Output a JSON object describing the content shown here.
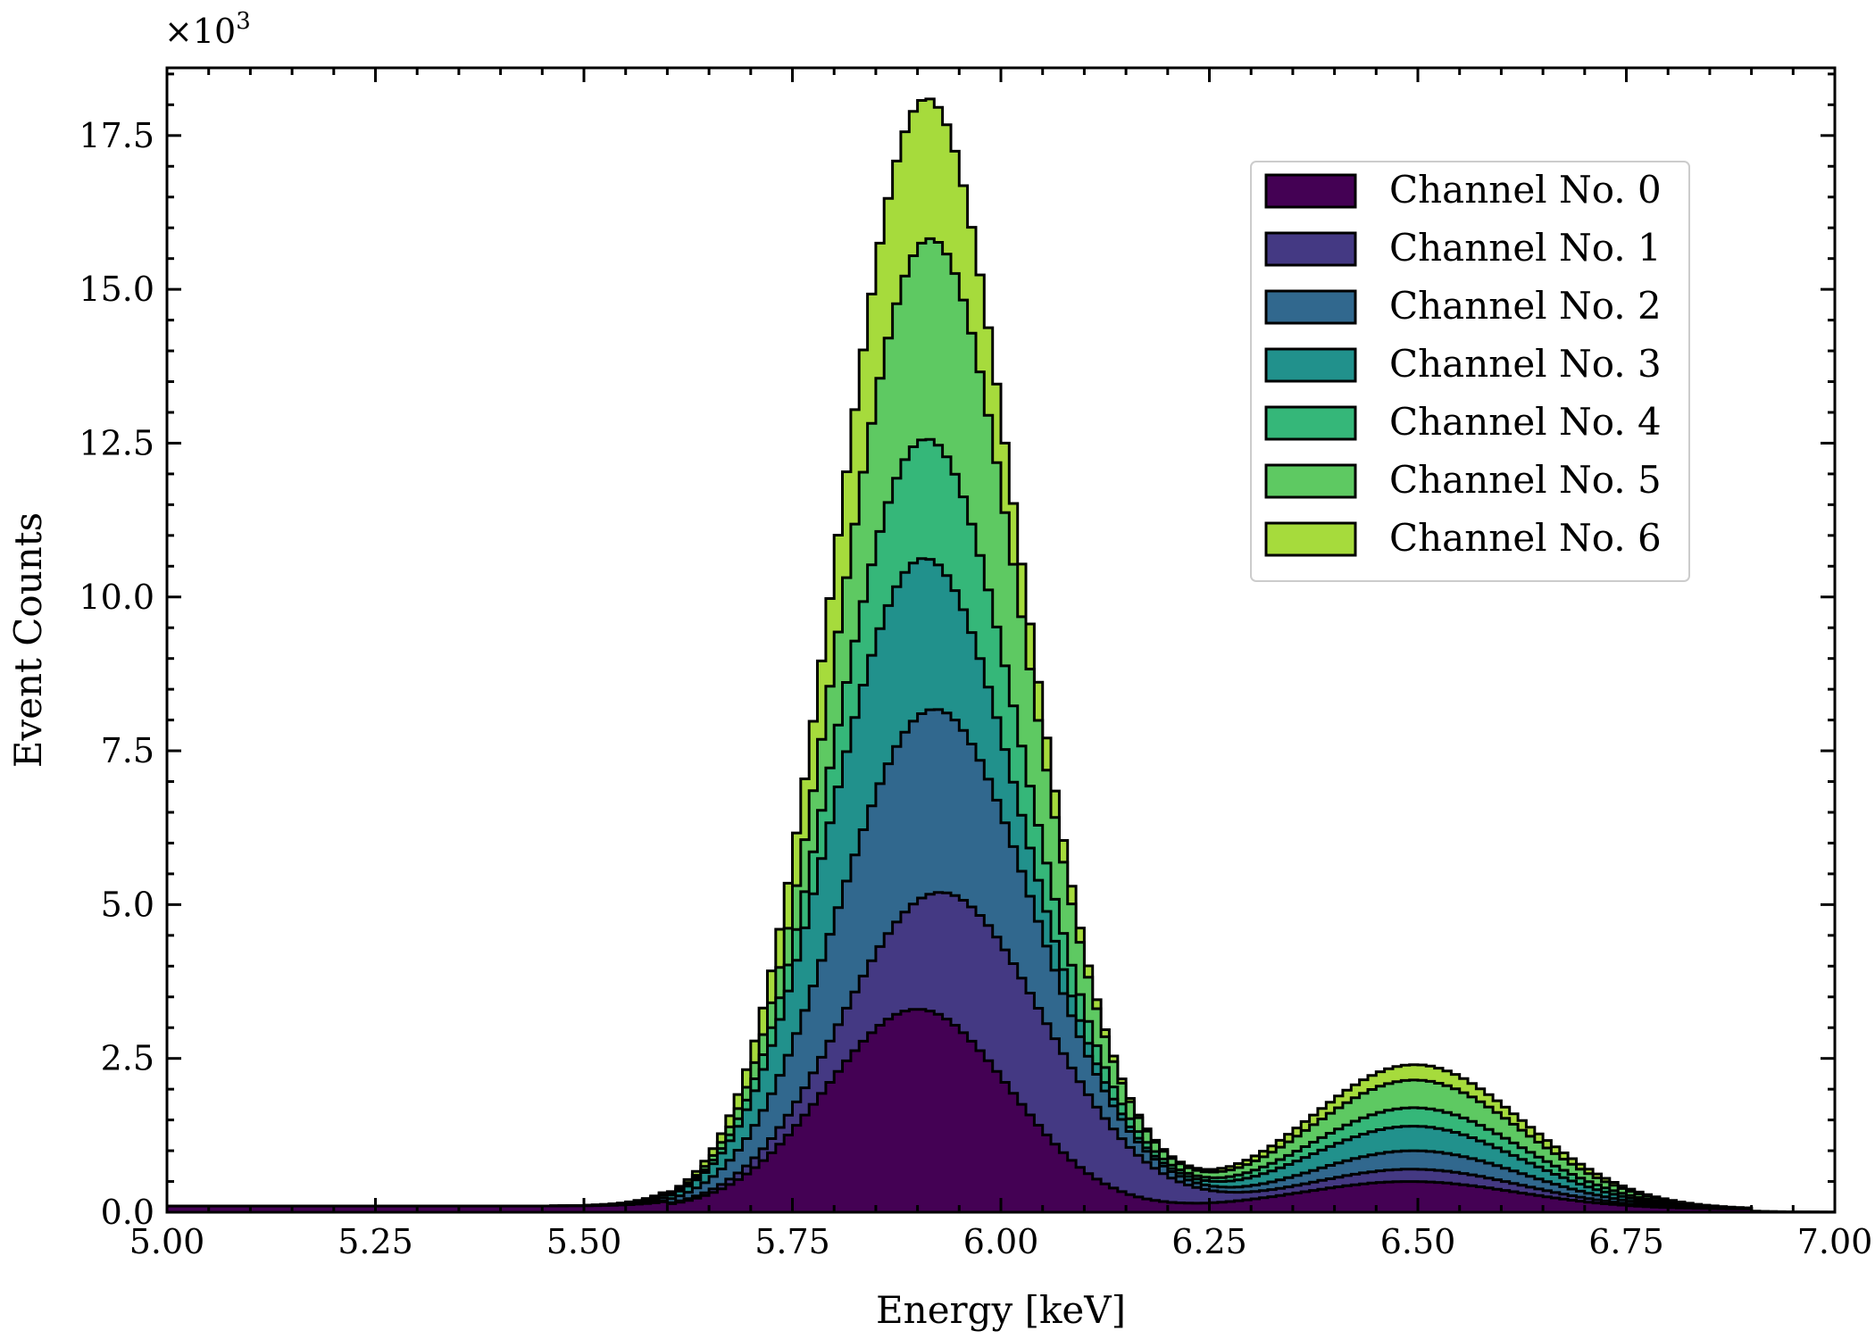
{
  "chart_data": {
    "type": "area",
    "xlabel": "Energy [keV]",
    "ylabel": "Event Counts",
    "multiplier": "×10",
    "multiplier_exp": "3",
    "xlim": [
      5.0,
      7.0
    ],
    "ylim": [
      0,
      18.6
    ],
    "bin_width": 0.01,
    "x_ticks": [
      5.0,
      5.25,
      5.5,
      5.75,
      6.0,
      6.25,
      6.5,
      6.75,
      7.0
    ],
    "x_tick_labels": [
      "5.00",
      "5.25",
      "5.50",
      "5.75",
      "6.00",
      "6.25",
      "6.50",
      "6.75",
      "7.00"
    ],
    "y_ticks": [
      0,
      2.5,
      5,
      7.5,
      10,
      12.5,
      15,
      17.5
    ],
    "y_tick_labels": [
      "0.0",
      "2.5",
      "5.0",
      "7.5",
      "10.0",
      "12.5",
      "15.0",
      "17.5"
    ],
    "legend_position": "top-right",
    "stacked": true,
    "series": [
      {
        "name": "Channel No. 0",
        "color": "#440154",
        "components": [
          {
            "mu": 5.9,
            "sigma": 0.11,
            "amp": 3.25
          },
          {
            "mu": 6.49,
            "sigma": 0.13,
            "amp": 0.45
          }
        ]
      },
      {
        "name": "Channel No. 1",
        "color": "#443983",
        "components": [
          {
            "mu": 5.98,
            "sigma": 0.12,
            "amp": 2.2
          },
          {
            "mu": 6.5,
            "sigma": 0.13,
            "amp": 0.2
          }
        ]
      },
      {
        "name": "Channel No. 2",
        "color": "#31688e",
        "components": [
          {
            "mu": 5.91,
            "sigma": 0.11,
            "amp": 3.0
          },
          {
            "mu": 6.5,
            "sigma": 0.13,
            "amp": 0.3
          }
        ]
      },
      {
        "name": "Channel No. 3",
        "color": "#21918c",
        "components": [
          {
            "mu": 5.88,
            "sigma": 0.1,
            "amp": 2.6
          },
          {
            "mu": 6.49,
            "sigma": 0.13,
            "amp": 0.4
          }
        ]
      },
      {
        "name": "Channel No. 4",
        "color": "#35b779",
        "components": [
          {
            "mu": 5.92,
            "sigma": 0.1,
            "amp": 1.95
          },
          {
            "mu": 6.5,
            "sigma": 0.13,
            "amp": 0.3
          }
        ]
      },
      {
        "name": "Channel No. 5",
        "color": "#5ec962",
        "components": [
          {
            "mu": 5.93,
            "sigma": 0.1,
            "amp": 3.3
          },
          {
            "mu": 6.5,
            "sigma": 0.13,
            "amp": 0.45
          }
        ]
      },
      {
        "name": "Channel No. 6",
        "color": "#a6db3c",
        "components": [
          {
            "mu": 5.89,
            "sigma": 0.095,
            "amp": 2.35
          },
          {
            "mu": 6.5,
            "sigma": 0.13,
            "amp": 0.25
          }
        ]
      }
    ],
    "baseline": 0.1
  }
}
